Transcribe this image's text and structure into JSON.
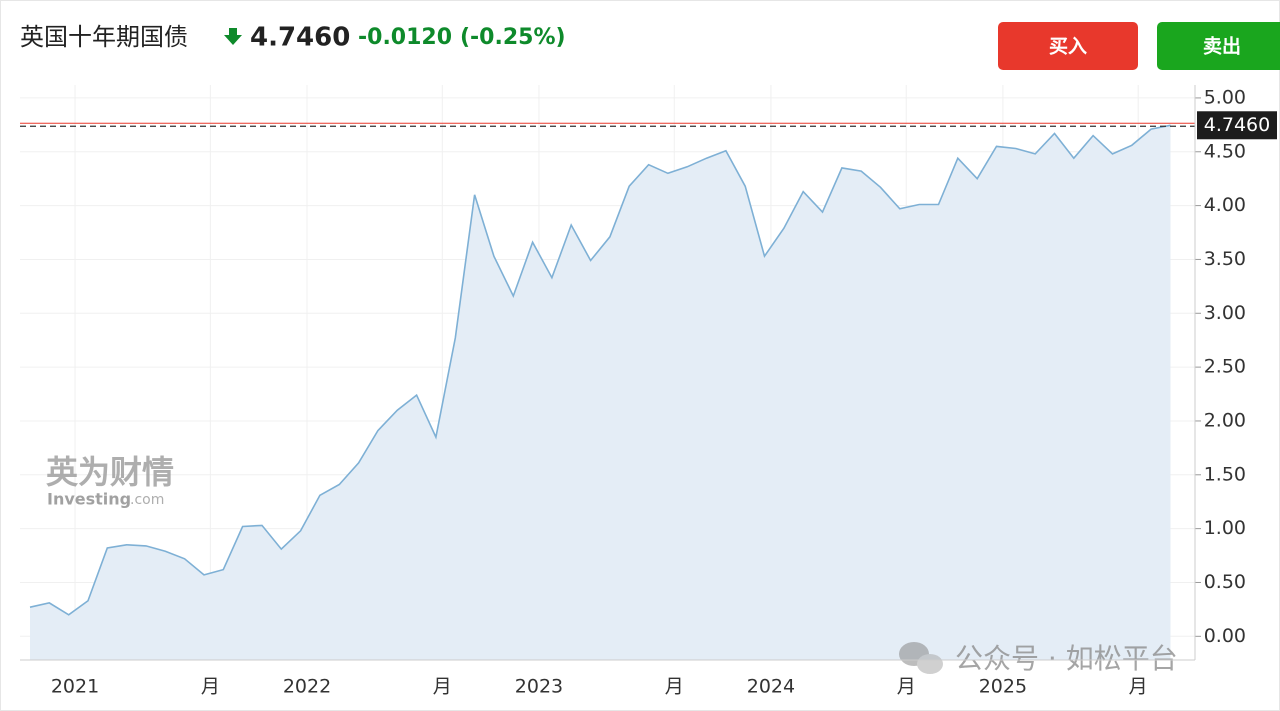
{
  "header": {
    "title": "英国十年期国债",
    "price": "4.7460",
    "change": "-0.0120",
    "change_pct": "(-0.25%)"
  },
  "buttons": [
    "买入",
    "卖出"
  ],
  "watermarks": {
    "logo_cn": "英为财情",
    "logo_en": "Investing",
    "logo_domain": ".com",
    "wechat": "公众号 · 如松平台"
  },
  "chart_data": {
    "type": "area",
    "categories": [
      null,
      null,
      "2021",
      null,
      null,
      null,
      null,
      null,
      null,
      "月",
      null,
      null,
      null,
      null,
      "2022",
      null,
      null,
      null,
      null,
      null,
      null,
      "月",
      null,
      null,
      null,
      null,
      "2023",
      null,
      null,
      null,
      null,
      null,
      null,
      "月",
      null,
      null,
      null,
      null,
      "2024",
      null,
      null,
      null,
      null,
      null,
      null,
      "月",
      null,
      null,
      null,
      null,
      "2025",
      null,
      null,
      null,
      null,
      null,
      null,
      "月",
      null,
      null
    ],
    "values": [
      0.27,
      0.31,
      0.2,
      0.33,
      0.82,
      0.85,
      0.84,
      0.79,
      0.72,
      0.57,
      0.62,
      1.02,
      1.03,
      0.81,
      0.98,
      1.31,
      1.41,
      1.61,
      1.91,
      2.1,
      2.24,
      1.85,
      2.77,
      4.1,
      3.53,
      3.16,
      3.66,
      3.33,
      3.82,
      3.49,
      3.71,
      4.18,
      4.38,
      4.3,
      4.36,
      4.44,
      4.51,
      4.18,
      3.53,
      3.79,
      4.13,
      3.94,
      4.35,
      4.32,
      4.17,
      3.97,
      4.01,
      4.01,
      4.44,
      4.25,
      4.55,
      4.53,
      4.48,
      4.67,
      4.44,
      4.65,
      4.48,
      4.56,
      4.71,
      4.746
    ],
    "color": "#7eb0d5",
    "fill": "#e4edf6",
    "ylim": [
      -0.22,
      5.12
    ],
    "yticks": [
      {
        "value": 0,
        "label": "0.00"
      },
      {
        "value": 0.5,
        "label": "0.50"
      },
      {
        "value": 1,
        "label": "1.00"
      },
      {
        "value": 1.5,
        "label": "1.50"
      },
      {
        "value": 2,
        "label": "2.00"
      },
      {
        "value": 2.5,
        "label": "2.50"
      },
      {
        "value": 3,
        "label": "3.00"
      },
      {
        "value": 3.5,
        "label": "3.50"
      },
      {
        "value": 4,
        "label": "4.00"
      },
      {
        "value": 4.5,
        "label": "4.50"
      },
      {
        "value": 5,
        "label": "5.00"
      }
    ],
    "grid": true
  }
}
